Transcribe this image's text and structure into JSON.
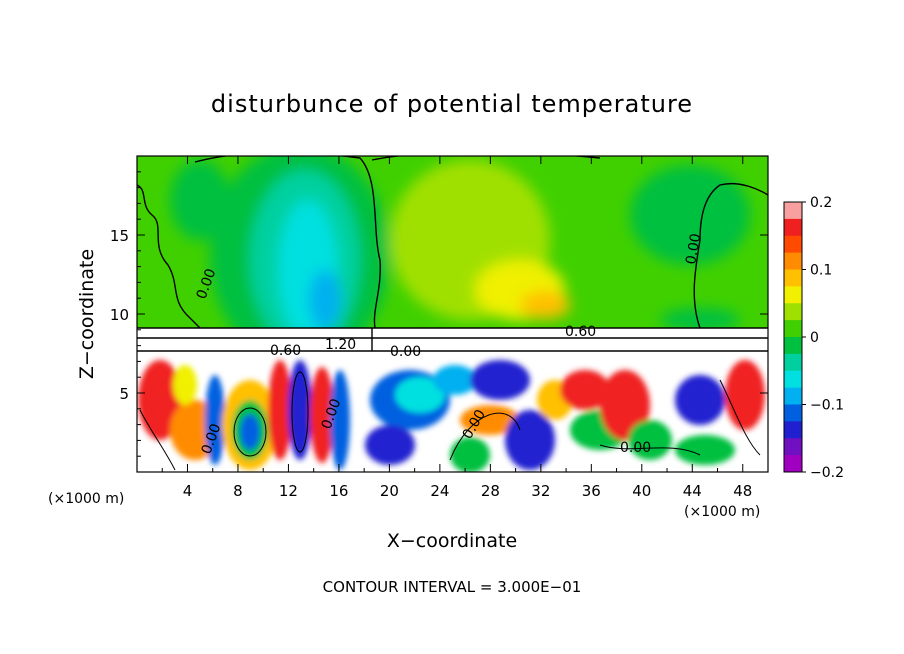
{
  "chart_data": {
    "type": "heatmap",
    "title": "disturbunce of potential temperature",
    "xlabel": "X−coordinate",
    "ylabel": "Z−coordinate",
    "x_unit_label": "(×1000 m)",
    "x_unit_label_right": "(×1000 m)",
    "xlim": [
      0,
      50
    ],
    "ylim": [
      0,
      20
    ],
    "x_ticks": [
      "4",
      "8",
      "12",
      "16",
      "20",
      "24",
      "28",
      "32",
      "36",
      "40",
      "44",
      "48"
    ],
    "y_ticks": [
      "5",
      "10",
      "15"
    ],
    "colorbar": {
      "range": [
        -0.2,
        0.2
      ],
      "tick_labels": [
        "0.2",
        "0.1",
        "0",
        "−0.1",
        "−0.2"
      ],
      "colors": [
        "#f8a0a0",
        "#f02020",
        "#ff4a00",
        "#ff8c00",
        "#ffc000",
        "#f0f000",
        "#a0e000",
        "#40d000",
        "#00c040",
        "#00d0a0",
        "#00e0e0",
        "#00b0f0",
        "#0060e0",
        "#2020d0",
        "#7010c0",
        "#a000c0"
      ]
    },
    "contour_labels": [
      "0.00",
      "0.00",
      "0.60",
      "1.20",
      "0.00",
      "0.60",
      "0.00",
      "0.00",
      "0.00",
      "0.00"
    ],
    "footer": "CONTOUR INTERVAL = 3.000E−01"
  }
}
